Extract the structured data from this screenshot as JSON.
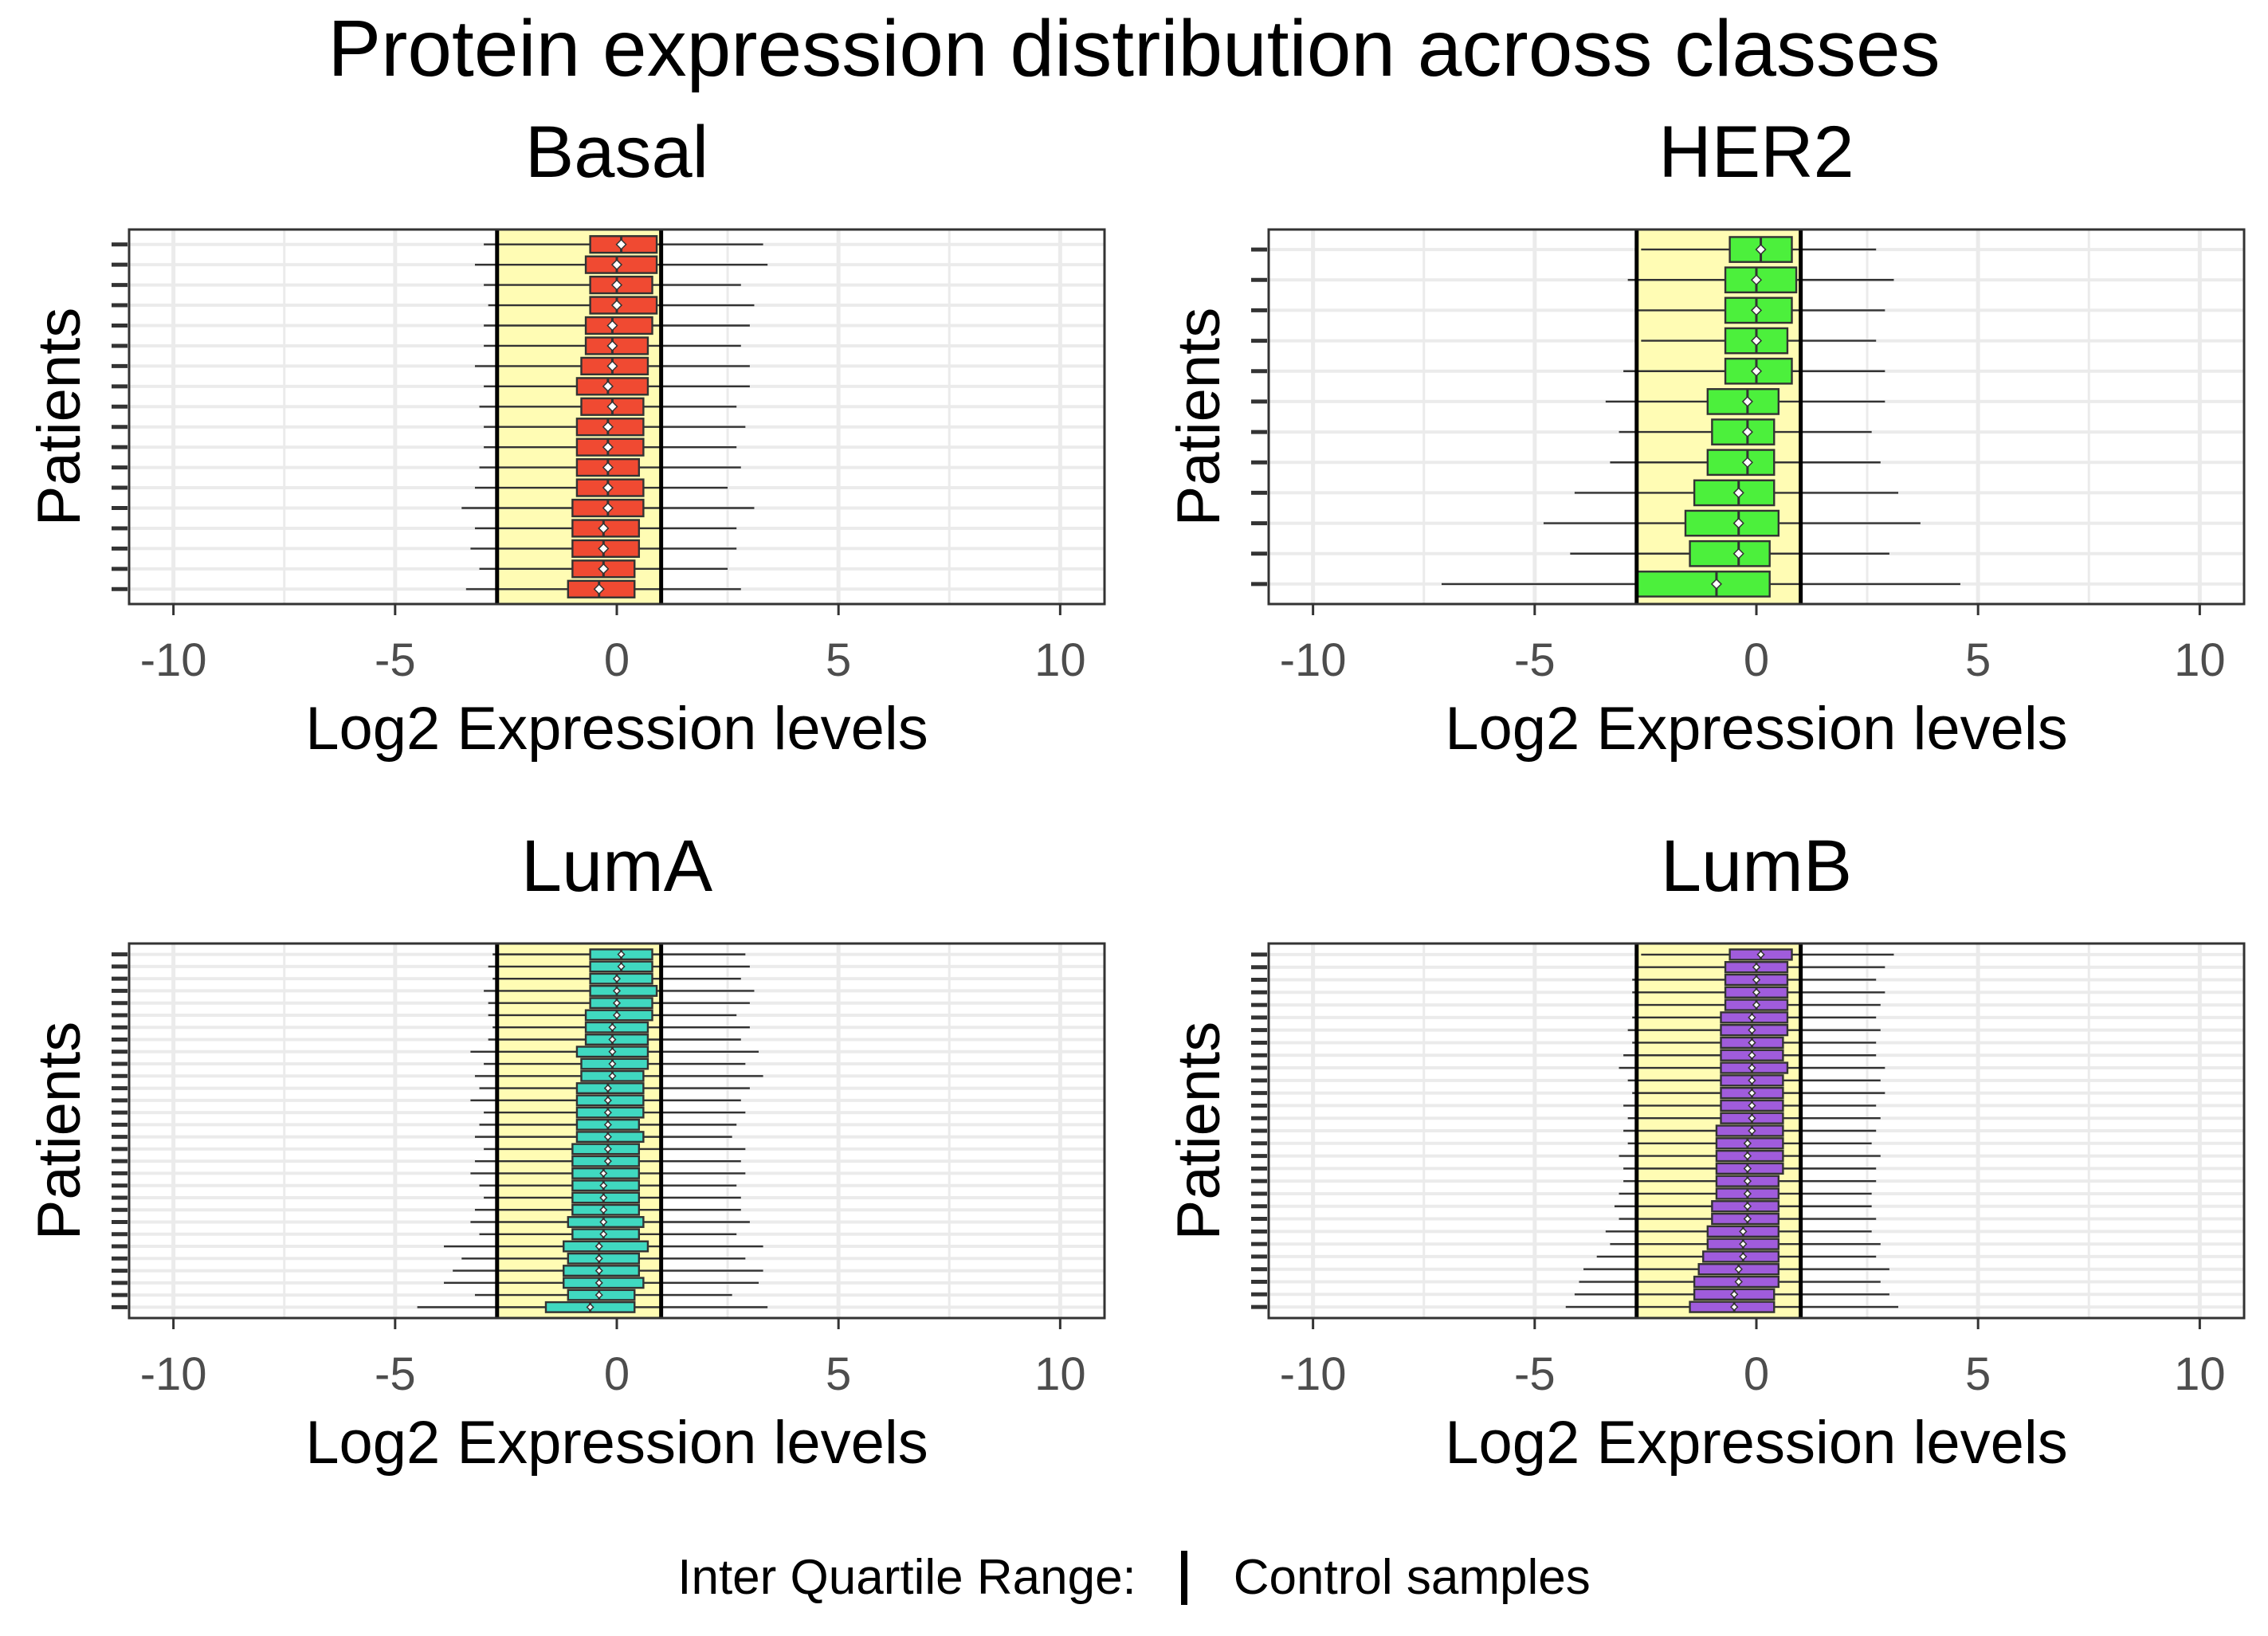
{
  "figure": {
    "title": "Protein expression distribution across classes",
    "legend_label": "Inter Quartile Range:",
    "legend_entry": "Control samples"
  },
  "colors": {
    "Basal": "#F04A32",
    "HER2": "#4CF03C",
    "LumA": "#40D8C0",
    "LumB": "#A05CDC",
    "iqr_band": "#FFFCB4",
    "grid": "#EBEBEB",
    "panel_border": "#333333"
  },
  "chart_data": [
    {
      "type": "box",
      "title": "Basal",
      "xlabel": "Log2 Expression levels",
      "ylabel": "Patients",
      "xlim": [
        -11,
        11
      ],
      "xticks": [
        -10,
        -5,
        0,
        5,
        10
      ],
      "xtick_labels": [
        "-10",
        "-5",
        "0",
        "5",
        "10"
      ],
      "control_iqr": [
        -2.7,
        1.0
      ],
      "series": [
        {
          "q1": -0.6,
          "median": 0.1,
          "q3": 0.9,
          "min": -3.0,
          "max": 3.3
        },
        {
          "q1": -0.7,
          "median": 0.0,
          "q3": 0.9,
          "min": -3.2,
          "max": 3.4
        },
        {
          "q1": -0.6,
          "median": 0.0,
          "q3": 0.8,
          "min": -3.0,
          "max": 2.8
        },
        {
          "q1": -0.6,
          "median": 0.0,
          "q3": 0.9,
          "min": -2.9,
          "max": 3.1
        },
        {
          "q1": -0.7,
          "median": -0.1,
          "q3": 0.8,
          "min": -3.0,
          "max": 3.0
        },
        {
          "q1": -0.7,
          "median": -0.1,
          "q3": 0.7,
          "min": -3.0,
          "max": 2.8
        },
        {
          "q1": -0.8,
          "median": -0.1,
          "q3": 0.7,
          "min": -3.2,
          "max": 3.0
        },
        {
          "q1": -0.9,
          "median": -0.2,
          "q3": 0.7,
          "min": -3.0,
          "max": 3.0
        },
        {
          "q1": -0.8,
          "median": -0.1,
          "q3": 0.6,
          "min": -3.1,
          "max": 2.7
        },
        {
          "q1": -0.9,
          "median": -0.2,
          "q3": 0.6,
          "min": -3.0,
          "max": 2.9
        },
        {
          "q1": -0.9,
          "median": -0.2,
          "q3": 0.6,
          "min": -3.0,
          "max": 2.7
        },
        {
          "q1": -0.9,
          "median": -0.2,
          "q3": 0.5,
          "min": -3.1,
          "max": 2.8
        },
        {
          "q1": -0.9,
          "median": -0.2,
          "q3": 0.6,
          "min": -3.2,
          "max": 2.5
        },
        {
          "q1": -1.0,
          "median": -0.2,
          "q3": 0.6,
          "min": -3.5,
          "max": 3.1
        },
        {
          "q1": -1.0,
          "median": -0.3,
          "q3": 0.5,
          "min": -3.2,
          "max": 2.7
        },
        {
          "q1": -1.0,
          "median": -0.3,
          "q3": 0.5,
          "min": -3.3,
          "max": 2.7
        },
        {
          "q1": -1.0,
          "median": -0.3,
          "q3": 0.4,
          "min": -3.1,
          "max": 2.5
        },
        {
          "q1": -1.1,
          "median": -0.4,
          "q3": 0.4,
          "min": -3.4,
          "max": 2.8
        }
      ]
    },
    {
      "type": "box",
      "title": "HER2",
      "xlabel": "Log2 Expression levels",
      "ylabel": "Patients",
      "xlim": [
        -11,
        11
      ],
      "xticks": [
        -10,
        -5,
        0,
        5,
        10
      ],
      "xtick_labels": [
        "-10",
        "-5",
        "0",
        "5",
        "10"
      ],
      "control_iqr": [
        -2.7,
        1.0
      ],
      "series": [
        {
          "q1": -0.6,
          "median": 0.1,
          "q3": 0.8,
          "min": -2.6,
          "max": 2.7
        },
        {
          "q1": -0.7,
          "median": 0.0,
          "q3": 0.9,
          "min": -2.9,
          "max": 3.1
        },
        {
          "q1": -0.7,
          "median": 0.0,
          "q3": 0.8,
          "min": -2.7,
          "max": 2.9
        },
        {
          "q1": -0.7,
          "median": 0.0,
          "q3": 0.7,
          "min": -2.6,
          "max": 2.7
        },
        {
          "q1": -0.7,
          "median": 0.0,
          "q3": 0.8,
          "min": -3.0,
          "max": 2.9
        },
        {
          "q1": -1.1,
          "median": -0.2,
          "q3": 0.5,
          "min": -3.4,
          "max": 2.9
        },
        {
          "q1": -1.0,
          "median": -0.2,
          "q3": 0.4,
          "min": -3.1,
          "max": 2.6
        },
        {
          "q1": -1.1,
          "median": -0.2,
          "q3": 0.4,
          "min": -3.3,
          "max": 2.8
        },
        {
          "q1": -1.4,
          "median": -0.4,
          "q3": 0.4,
          "min": -4.1,
          "max": 3.2
        },
        {
          "q1": -1.6,
          "median": -0.4,
          "q3": 0.5,
          "min": -4.8,
          "max": 3.7
        },
        {
          "q1": -1.5,
          "median": -0.4,
          "q3": 0.3,
          "min": -4.2,
          "max": 3.0
        },
        {
          "q1": -2.7,
          "median": -0.9,
          "q3": 0.3,
          "min": -7.1,
          "max": 4.6
        }
      ]
    },
    {
      "type": "box",
      "title": "LumA",
      "xlabel": "Log2 Expression levels",
      "ylabel": "Patients",
      "xlim": [
        -11,
        11
      ],
      "xticks": [
        -10,
        -5,
        0,
        5,
        10
      ],
      "xtick_labels": [
        "-10",
        "-5",
        "0",
        "5",
        "10"
      ],
      "control_iqr": [
        -2.7,
        1.0
      ],
      "series": [
        {
          "q1": -0.6,
          "median": 0.1,
          "q3": 0.8,
          "min": -2.8,
          "max": 2.9
        },
        {
          "q1": -0.6,
          "median": 0.1,
          "q3": 0.8,
          "min": -2.9,
          "max": 3.0
        },
        {
          "q1": -0.6,
          "median": 0.0,
          "q3": 0.8,
          "min": -2.8,
          "max": 2.8
        },
        {
          "q1": -0.6,
          "median": 0.0,
          "q3": 0.9,
          "min": -3.0,
          "max": 3.1
        },
        {
          "q1": -0.6,
          "median": 0.0,
          "q3": 0.8,
          "min": -2.9,
          "max": 3.0
        },
        {
          "q1": -0.7,
          "median": 0.0,
          "q3": 0.8,
          "min": -2.9,
          "max": 2.7
        },
        {
          "q1": -0.7,
          "median": -0.1,
          "q3": 0.7,
          "min": -2.8,
          "max": 3.0
        },
        {
          "q1": -0.7,
          "median": -0.1,
          "q3": 0.7,
          "min": -2.9,
          "max": 2.8
        },
        {
          "q1": -0.9,
          "median": -0.1,
          "q3": 0.7,
          "min": -3.3,
          "max": 3.2
        },
        {
          "q1": -0.8,
          "median": -0.1,
          "q3": 0.7,
          "min": -3.0,
          "max": 2.9
        },
        {
          "q1": -0.8,
          "median": -0.1,
          "q3": 0.6,
          "min": -3.2,
          "max": 3.3
        },
        {
          "q1": -0.9,
          "median": -0.2,
          "q3": 0.6,
          "min": -3.1,
          "max": 3.0
        },
        {
          "q1": -0.9,
          "median": -0.2,
          "q3": 0.6,
          "min": -3.3,
          "max": 2.8
        },
        {
          "q1": -0.9,
          "median": -0.2,
          "q3": 0.6,
          "min": -3.0,
          "max": 2.9
        },
        {
          "q1": -0.9,
          "median": -0.2,
          "q3": 0.5,
          "min": -3.1,
          "max": 2.7
        },
        {
          "q1": -0.9,
          "median": -0.2,
          "q3": 0.6,
          "min": -3.2,
          "max": 2.6
        },
        {
          "q1": -1.0,
          "median": -0.2,
          "q3": 0.5,
          "min": -3.0,
          "max": 2.9
        },
        {
          "q1": -1.0,
          "median": -0.2,
          "q3": 0.5,
          "min": -3.2,
          "max": 2.8
        },
        {
          "q1": -1.0,
          "median": -0.3,
          "q3": 0.5,
          "min": -3.3,
          "max": 2.9
        },
        {
          "q1": -1.0,
          "median": -0.3,
          "q3": 0.5,
          "min": -3.1,
          "max": 2.7
        },
        {
          "q1": -1.0,
          "median": -0.3,
          "q3": 0.5,
          "min": -3.0,
          "max": 2.8
        },
        {
          "q1": -1.0,
          "median": -0.3,
          "q3": 0.5,
          "min": -3.2,
          "max": 2.8
        },
        {
          "q1": -1.1,
          "median": -0.3,
          "q3": 0.6,
          "min": -3.3,
          "max": 3.0
        },
        {
          "q1": -1.0,
          "median": -0.3,
          "q3": 0.5,
          "min": -3.1,
          "max": 2.7
        },
        {
          "q1": -1.2,
          "median": -0.4,
          "q3": 0.7,
          "min": -3.9,
          "max": 3.3
        },
        {
          "q1": -1.1,
          "median": -0.4,
          "q3": 0.5,
          "min": -3.5,
          "max": 2.9
        },
        {
          "q1": -1.2,
          "median": -0.4,
          "q3": 0.5,
          "min": -3.7,
          "max": 3.3
        },
        {
          "q1": -1.2,
          "median": -0.4,
          "q3": 0.6,
          "min": -3.9,
          "max": 3.2
        },
        {
          "q1": -1.1,
          "median": -0.4,
          "q3": 0.4,
          "min": -3.2,
          "max": 2.6
        },
        {
          "q1": -1.6,
          "median": -0.6,
          "q3": 0.4,
          "min": -4.5,
          "max": 3.4
        }
      ]
    },
    {
      "type": "box",
      "title": "LumB",
      "xlabel": "Log2 Expression levels",
      "ylabel": "Patients",
      "xlim": [
        -11,
        11
      ],
      "xticks": [
        -10,
        -5,
        0,
        5,
        10
      ],
      "xtick_labels": [
        "-10",
        "-5",
        "0",
        "5",
        "10"
      ],
      "control_iqr": [
        -2.7,
        1.0
      ],
      "series": [
        {
          "q1": -0.6,
          "median": 0.1,
          "q3": 0.8,
          "min": -2.6,
          "max": 3.1
        },
        {
          "q1": -0.7,
          "median": 0.0,
          "q3": 0.7,
          "min": -2.7,
          "max": 2.9
        },
        {
          "q1": -0.7,
          "median": 0.0,
          "q3": 0.7,
          "min": -2.8,
          "max": 2.7
        },
        {
          "q1": -0.7,
          "median": 0.0,
          "q3": 0.7,
          "min": -2.8,
          "max": 2.9
        },
        {
          "q1": -0.7,
          "median": 0.0,
          "q3": 0.7,
          "min": -2.7,
          "max": 2.8
        },
        {
          "q1": -0.8,
          "median": -0.1,
          "q3": 0.7,
          "min": -2.8,
          "max": 2.7
        },
        {
          "q1": -0.8,
          "median": -0.1,
          "q3": 0.7,
          "min": -2.9,
          "max": 2.8
        },
        {
          "q1": -0.8,
          "median": -0.1,
          "q3": 0.6,
          "min": -2.8,
          "max": 2.7
        },
        {
          "q1": -0.8,
          "median": -0.1,
          "q3": 0.6,
          "min": -3.0,
          "max": 2.7
        },
        {
          "q1": -0.8,
          "median": -0.1,
          "q3": 0.7,
          "min": -3.1,
          "max": 2.9
        },
        {
          "q1": -0.8,
          "median": -0.1,
          "q3": 0.6,
          "min": -2.9,
          "max": 2.8
        },
        {
          "q1": -0.8,
          "median": -0.1,
          "q3": 0.6,
          "min": -2.8,
          "max": 2.9
        },
        {
          "q1": -0.8,
          "median": -0.1,
          "q3": 0.6,
          "min": -3.0,
          "max": 2.7
        },
        {
          "q1": -0.8,
          "median": -0.1,
          "q3": 0.6,
          "min": -2.9,
          "max": 2.8
        },
        {
          "q1": -0.9,
          "median": -0.1,
          "q3": 0.6,
          "min": -3.0,
          "max": 2.7
        },
        {
          "q1": -0.9,
          "median": -0.2,
          "q3": 0.6,
          "min": -2.9,
          "max": 2.6
        },
        {
          "q1": -0.9,
          "median": -0.2,
          "q3": 0.6,
          "min": -3.1,
          "max": 2.8
        },
        {
          "q1": -0.9,
          "median": -0.2,
          "q3": 0.6,
          "min": -3.0,
          "max": 2.7
        },
        {
          "q1": -0.9,
          "median": -0.2,
          "q3": 0.5,
          "min": -3.0,
          "max": 2.7
        },
        {
          "q1": -0.9,
          "median": -0.2,
          "q3": 0.5,
          "min": -3.1,
          "max": 2.6
        },
        {
          "q1": -1.0,
          "median": -0.2,
          "q3": 0.5,
          "min": -3.2,
          "max": 2.6
        },
        {
          "q1": -1.0,
          "median": -0.2,
          "q3": 0.5,
          "min": -3.1,
          "max": 2.7
        },
        {
          "q1": -1.1,
          "median": -0.3,
          "q3": 0.5,
          "min": -3.4,
          "max": 2.6
        },
        {
          "q1": -1.1,
          "median": -0.3,
          "q3": 0.5,
          "min": -3.3,
          "max": 2.8
        },
        {
          "q1": -1.2,
          "median": -0.3,
          "q3": 0.5,
          "min": -3.6,
          "max": 2.7
        },
        {
          "q1": -1.3,
          "median": -0.4,
          "q3": 0.5,
          "min": -3.9,
          "max": 3.0
        },
        {
          "q1": -1.4,
          "median": -0.4,
          "q3": 0.5,
          "min": -4.0,
          "max": 2.8
        },
        {
          "q1": -1.4,
          "median": -0.5,
          "q3": 0.4,
          "min": -4.1,
          "max": 3.0
        },
        {
          "q1": -1.5,
          "median": -0.5,
          "q3": 0.4,
          "min": -4.3,
          "max": 3.2
        }
      ]
    }
  ]
}
